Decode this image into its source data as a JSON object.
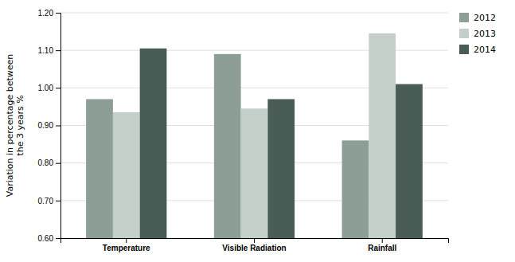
{
  "chart_data": {
    "type": "bar",
    "categories": [
      "Temperature",
      "Visible Radiation",
      "Rainfall"
    ],
    "series": [
      {
        "name": "2012",
        "color": "#8c9e96",
        "values": [
          0.97,
          1.09,
          0.86
        ]
      },
      {
        "name": "2013",
        "color": "#c5cfc9",
        "values": [
          0.935,
          0.945,
          1.145
        ]
      },
      {
        "name": "2014",
        "color": "#4a5c56",
        "values": [
          1.105,
          0.97,
          1.01
        ]
      }
    ],
    "ylabel": "Variation in percentage between\nthe 3 years %",
    "ylim": [
      0.6,
      1.2
    ],
    "yticks": [
      {
        "value": 0.6,
        "label": "0.60"
      },
      {
        "value": 0.7,
        "label": "0.70"
      },
      {
        "value": 0.8,
        "label": "0.80"
      },
      {
        "value": 0.9,
        "label": "0.90"
      },
      {
        "value": 1.0,
        "label": "1.00"
      },
      {
        "value": 1.1,
        "label": "1.10"
      },
      {
        "value": 1.2,
        "label": "1.20"
      }
    ],
    "grid": true,
    "legend": "upper right"
  }
}
